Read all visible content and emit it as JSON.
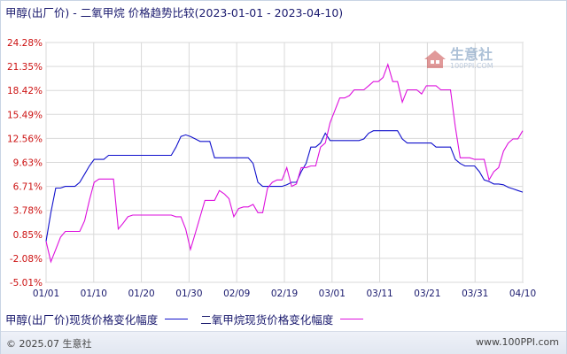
{
  "title": "甲醇(出厂价) - 二氧甲烷 价格趋势比较(2023-01-01 - 2023-04-10)",
  "watermark": {
    "name": "生意社",
    "url": "100PPI.COM"
  },
  "footer": {
    "left": "© 2025.07 生意社",
    "right": "www.100PPI.com"
  },
  "colors": {
    "series1": "#1010cc",
    "series2": "#dd10dd",
    "grid": "#d9d9d9",
    "axis": "#9a9a9a",
    "ytick": "#cc1111",
    "xtick": "#1a1a6e"
  },
  "chart_data": {
    "type": "line",
    "yticks": [
      "24.28%",
      "21.35%",
      "18.42%",
      "15.49%",
      "12.56%",
      "9.63%",
      "6.71%",
      "3.78%",
      "0.85%",
      "-2.08%",
      "-5.01%"
    ],
    "ylim": [
      -5.01,
      24.28
    ],
    "xticks": [
      "01/01",
      "01/10",
      "01/20",
      "01/30",
      "02/09",
      "02/19",
      "03/01",
      "03/11",
      "03/21",
      "03/31",
      "04/10"
    ],
    "x_dates": [
      "2023-01-01",
      "2023-01-02",
      "2023-01-03",
      "2023-01-04",
      "2023-01-05",
      "2023-01-06",
      "2023-01-07",
      "2023-01-08",
      "2023-01-09",
      "2023-01-10",
      "2023-01-11",
      "2023-01-12",
      "2023-01-13",
      "2023-01-14",
      "2023-01-15",
      "2023-01-16",
      "2023-01-17",
      "2023-01-18",
      "2023-01-19",
      "2023-01-20",
      "2023-01-21",
      "2023-01-22",
      "2023-01-23",
      "2023-01-24",
      "2023-01-25",
      "2023-01-26",
      "2023-01-27",
      "2023-01-28",
      "2023-01-29",
      "2023-01-30",
      "2023-01-31",
      "2023-02-01",
      "2023-02-02",
      "2023-02-03",
      "2023-02-04",
      "2023-02-05",
      "2023-02-06",
      "2023-02-07",
      "2023-02-08",
      "2023-02-09",
      "2023-02-10",
      "2023-02-11",
      "2023-02-12",
      "2023-02-13",
      "2023-02-14",
      "2023-02-15",
      "2023-02-16",
      "2023-02-17",
      "2023-02-18",
      "2023-02-19",
      "2023-02-20",
      "2023-02-21",
      "2023-02-22",
      "2023-02-23",
      "2023-02-24",
      "2023-02-25",
      "2023-02-26",
      "2023-02-27",
      "2023-02-28",
      "2023-03-01",
      "2023-03-02",
      "2023-03-03",
      "2023-03-04",
      "2023-03-05",
      "2023-03-06",
      "2023-03-07",
      "2023-03-08",
      "2023-03-09",
      "2023-03-10",
      "2023-03-11",
      "2023-03-12",
      "2023-03-13",
      "2023-03-14",
      "2023-03-15",
      "2023-03-16",
      "2023-03-17",
      "2023-03-18",
      "2023-03-19",
      "2023-03-20",
      "2023-03-21",
      "2023-03-22",
      "2023-03-23",
      "2023-03-24",
      "2023-03-25",
      "2023-03-26",
      "2023-03-27",
      "2023-03-28",
      "2023-03-29",
      "2023-03-30",
      "2023-03-31",
      "2023-04-01",
      "2023-04-02",
      "2023-04-03",
      "2023-04-04",
      "2023-04-05",
      "2023-04-06",
      "2023-04-07",
      "2023-04-08",
      "2023-04-09",
      "2023-04-10"
    ],
    "grid": true,
    "legend_position": "bottom",
    "series": [
      {
        "name": "甲醇(出厂价)现货价格变化幅度",
        "values": [
          0,
          3.5,
          6.5,
          6.5,
          6.71,
          6.71,
          6.71,
          7.2,
          8.2,
          9.2,
          10.0,
          10.0,
          10.0,
          10.5,
          10.5,
          10.5,
          10.5,
          10.5,
          10.5,
          10.5,
          10.5,
          10.5,
          10.5,
          10.5,
          10.5,
          10.5,
          10.5,
          11.5,
          12.8,
          13.0,
          12.8,
          12.5,
          12.2,
          12.2,
          12.2,
          10.2,
          10.2,
          10.2,
          10.2,
          10.2,
          10.2,
          10.2,
          10.2,
          9.5,
          7.2,
          6.71,
          6.71,
          6.71,
          6.71,
          6.71,
          6.9,
          7.2,
          7.2,
          8.5,
          9.5,
          11.5,
          11.5,
          12.0,
          13.2,
          12.3,
          12.3,
          12.3,
          12.3,
          12.3,
          12.3,
          12.3,
          12.5,
          13.2,
          13.5,
          13.5,
          13.5,
          13.5,
          13.5,
          13.5,
          12.5,
          12.0,
          12.0,
          12.0,
          12.0,
          12.0,
          12.0,
          11.5,
          11.5,
          11.5,
          11.5,
          10.0,
          9.5,
          9.2,
          9.2,
          9.2,
          8.5,
          7.5,
          7.3,
          7.0,
          7.0,
          6.9,
          6.6,
          6.4,
          6.2,
          6.0
        ]
      },
      {
        "name": "二氧甲烷现货价格变化幅度",
        "values": [
          0,
          -2.5,
          -1.0,
          0.5,
          1.2,
          1.2,
          1.2,
          1.2,
          2.5,
          5.0,
          7.2,
          7.6,
          7.6,
          7.6,
          7.6,
          1.5,
          2.2,
          3.0,
          3.2,
          3.2,
          3.2,
          3.2,
          3.2,
          3.2,
          3.2,
          3.2,
          3.2,
          3.0,
          3.0,
          1.5,
          -1.0,
          1.0,
          3.0,
          5.0,
          5.0,
          5.0,
          6.2,
          5.8,
          5.2,
          3.0,
          4.0,
          4.2,
          4.2,
          4.5,
          3.5,
          3.5,
          6.5,
          7.2,
          7.5,
          7.5,
          9.0,
          6.71,
          7.0,
          9.0,
          9.0,
          9.2,
          9.2,
          11.5,
          12.0,
          14.5,
          16.0,
          17.5,
          17.5,
          17.8,
          18.5,
          18.5,
          18.5,
          19.0,
          19.5,
          19.5,
          20.0,
          21.6,
          19.5,
          19.5,
          17.0,
          18.5,
          18.5,
          18.5,
          18.0,
          19.0,
          19.0,
          19.0,
          18.5,
          18.5,
          18.5,
          14.0,
          10.2,
          10.2,
          10.2,
          10.0,
          10.0,
          10.0,
          7.5,
          8.5,
          9.0,
          11.0,
          12.0,
          12.5,
          12.5,
          13.5
        ]
      }
    ]
  }
}
